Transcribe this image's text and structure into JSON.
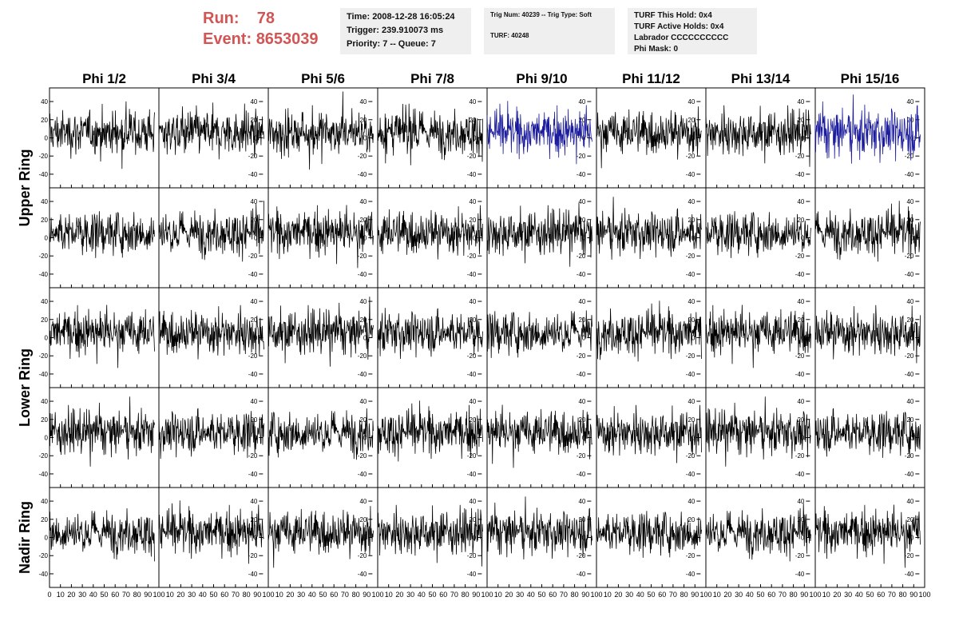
{
  "header": {
    "run_label": "Run:",
    "run_value": "78",
    "event_label": "Event:",
    "event_value": "8653039"
  },
  "info_boxes": {
    "time_trigger": {
      "time": "Time: 2008-12-28 16:05:24",
      "trigger": "Trigger: 239.910073 ms",
      "priority_queue": "Priority: 7 -- Queue: 7"
    },
    "trig": {
      "trig_num_type": "Trig Num: 40239 -- Trig Type: Soft",
      "turf": "TURF: 40248"
    },
    "turf": {
      "this_hold": "TURF This Hold: 0x4",
      "active_holds": "TURF Active Holds: 0x4",
      "labrador": "Labrador CCCCCCCCCC",
      "phi_mask": "Phi Mask: 0"
    }
  },
  "colors": {
    "header_red": "#d25555",
    "trace_black": "#000000",
    "trace_highlight_blue": "#1a1a9c",
    "info_box_bg": "#efefef"
  },
  "chart_data": {
    "type": "line",
    "columns": [
      "Phi 1/2",
      "Phi 3/4",
      "Phi 5/6",
      "Phi 7/8",
      "Phi 9/10",
      "Phi 11/12",
      "Phi 13/14",
      "Phi 15/16"
    ],
    "row_labels": [
      {
        "text": "Upper Ring",
        "rows": [
          0,
          1
        ]
      },
      {
        "text": "Lower Ring",
        "rows": [
          2,
          3
        ]
      },
      {
        "text": "Nadir Ring",
        "rows": [
          4
        ]
      }
    ],
    "n_rows": 5,
    "xlim": [
      0,
      100
    ],
    "ylim": [
      -55,
      55
    ],
    "x_ticks": [
      0,
      10,
      20,
      30,
      40,
      50,
      60,
      70,
      80,
      90,
      100
    ],
    "x_tick_labels": [
      "0",
      "10",
      "20",
      "30",
      "40",
      "50",
      "60",
      "70",
      "80",
      "90",
      "100"
    ],
    "y_ticks": [
      -40,
      -20,
      0,
      20,
      40
    ],
    "y_tick_labels": [
      "-40",
      "-20",
      "0",
      "20",
      "40"
    ],
    "n_samples": 256,
    "amplitude_note": "noise waveform, approx ±25 typical, peaks to ±45",
    "highlighted_panels": [
      {
        "row": 0,
        "col": 4
      },
      {
        "row": 0,
        "col": 7
      }
    ],
    "grid": false
  }
}
